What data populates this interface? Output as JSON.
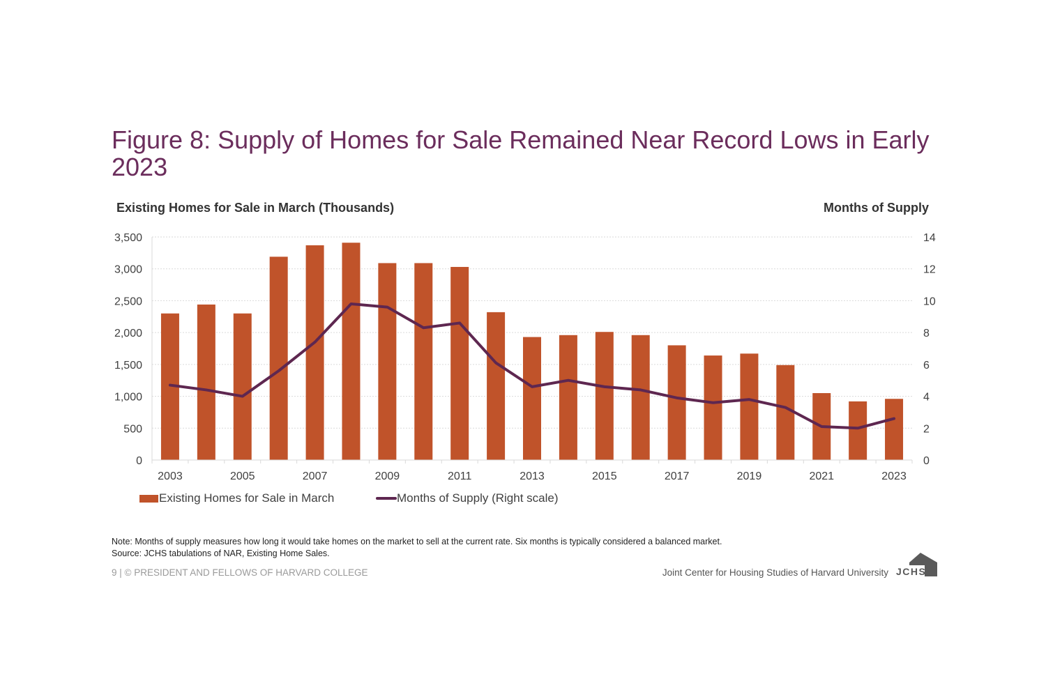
{
  "figure": {
    "title": "Figure 8: Supply of Homes for Sale Remained Near Record Lows in Early 2023",
    "left_axis_title": "Existing Homes for Sale in March (Thousands)",
    "right_axis_title": "Months of Supply"
  },
  "chart_data": {
    "type": "bar",
    "title": "Figure 8: Supply of Homes for Sale Remained Near Record Lows in Early 2023",
    "xlabel": "",
    "ylabel": "Existing Homes for Sale in March (Thousands)",
    "y2label": "Months of Supply",
    "categories": [
      "2003",
      "2004",
      "2005",
      "2006",
      "2007",
      "2008",
      "2009",
      "2010",
      "2011",
      "2012",
      "2013",
      "2014",
      "2015",
      "2016",
      "2017",
      "2018",
      "2019",
      "2020",
      "2021",
      "2022",
      "2023"
    ],
    "x_tick_labels": [
      "2003",
      "2005",
      "2007",
      "2009",
      "2011",
      "2013",
      "2015",
      "2017",
      "2019",
      "2021",
      "2023"
    ],
    "ylim": [
      0,
      3500
    ],
    "y_ticks": [
      0,
      500,
      1000,
      1500,
      2000,
      2500,
      3000,
      3500
    ],
    "y_tick_labels": [
      "0",
      "500",
      "1,000",
      "1,500",
      "2,000",
      "2,500",
      "3,000",
      "3,500"
    ],
    "y2lim": [
      0,
      14
    ],
    "y2_ticks": [
      0,
      2,
      4,
      6,
      8,
      10,
      12,
      14
    ],
    "y2_tick_labels": [
      "0",
      "2",
      "4",
      "6",
      "8",
      "10",
      "12",
      "14"
    ],
    "grid": true,
    "legend_position": "bottom-left",
    "series": [
      {
        "name": "Existing Homes for Sale in March",
        "type": "bar",
        "axis": "left",
        "color": "#c0532a",
        "values": [
          2300,
          2440,
          2300,
          3190,
          3370,
          3410,
          3090,
          3090,
          3030,
          2320,
          1930,
          1960,
          2010,
          1960,
          1800,
          1640,
          1670,
          1490,
          1050,
          920,
          960
        ]
      },
      {
        "name": "Months of Supply (Right scale)",
        "type": "line",
        "axis": "right",
        "color": "#5e2750",
        "values": [
          4.7,
          4.4,
          4.0,
          5.6,
          7.4,
          9.8,
          9.6,
          8.3,
          8.6,
          6.1,
          4.6,
          5.0,
          4.6,
          4.4,
          3.9,
          3.6,
          3.8,
          3.3,
          2.1,
          2.0,
          2.6
        ]
      }
    ]
  },
  "legend": {
    "bar_label": "Existing Homes for Sale in March",
    "line_label": "Months of Supply (Right scale)"
  },
  "footer": {
    "note": "Note: Months of supply measures how long it would take homes on the market to sell at the current rate. Six months is typically considered a balanced market.",
    "source": "Source: JCHS tabulations of NAR, Existing Home Sales.",
    "copyright": "9 | © PRESIDENT AND FELLOWS OF HARVARD COLLEGE",
    "organization": "Joint Center for Housing Studies of Harvard University",
    "logo_text": "JCHS"
  },
  "colors": {
    "title": "#6b2d5c",
    "bar": "#c0532a",
    "line": "#5e2750",
    "grid": "#d9d9d9",
    "axis_text": "#404040"
  }
}
